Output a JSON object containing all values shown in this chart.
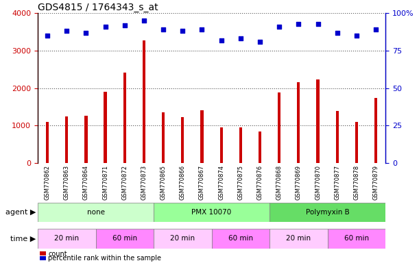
{
  "title": "GDS4815 / 1764343_s_at",
  "samples": [
    "GSM770862",
    "GSM770863",
    "GSM770864",
    "GSM770871",
    "GSM770872",
    "GSM770873",
    "GSM770865",
    "GSM770866",
    "GSM770867",
    "GSM770874",
    "GSM770875",
    "GSM770876",
    "GSM770868",
    "GSM770869",
    "GSM770870",
    "GSM770877",
    "GSM770878",
    "GSM770879"
  ],
  "counts": [
    1100,
    1250,
    1270,
    1900,
    2420,
    3270,
    1350,
    1230,
    1400,
    960,
    960,
    840,
    1880,
    2150,
    2230,
    1390,
    1100,
    1740
  ],
  "percentiles": [
    85,
    88,
    87,
    91,
    92,
    95,
    89,
    88,
    89,
    82,
    83,
    81,
    91,
    93,
    93,
    87,
    85,
    89
  ],
  "bar_color": "#cc0000",
  "dot_color": "#0000cc",
  "ylim_left": [
    0,
    4000
  ],
  "ylim_right": [
    0,
    100
  ],
  "yticks_left": [
    0,
    1000,
    2000,
    3000,
    4000
  ],
  "yticks_right": [
    0,
    25,
    50,
    75,
    100
  ],
  "agent_groups": [
    {
      "label": "none",
      "start": 0,
      "end": 6,
      "color": "#ccffcc"
    },
    {
      "label": "PMX 10070",
      "start": 6,
      "end": 12,
      "color": "#99ff99"
    },
    {
      "label": "Polymyxin B",
      "start": 12,
      "end": 18,
      "color": "#66dd66"
    }
  ],
  "time_groups": [
    {
      "label": "20 min",
      "start": 0,
      "end": 3,
      "color": "#ffccff"
    },
    {
      "label": "60 min",
      "start": 3,
      "end": 6,
      "color": "#ff88ff"
    },
    {
      "label": "20 min",
      "start": 6,
      "end": 9,
      "color": "#ffccff"
    },
    {
      "label": "60 min",
      "start": 9,
      "end": 12,
      "color": "#ff88ff"
    },
    {
      "label": "20 min",
      "start": 12,
      "end": 15,
      "color": "#ffccff"
    },
    {
      "label": "60 min",
      "start": 15,
      "end": 18,
      "color": "#ff88ff"
    }
  ],
  "agent_label": "agent",
  "time_label": "time",
  "legend_count_label": "count",
  "legend_pct_label": "percentile rank within the sample",
  "grid_color": "#555555",
  "bg_color": "#ffffff",
  "plot_bg_color": "#ffffff",
  "xtick_bg_color": "#dddddd",
  "bar_width": 0.15
}
